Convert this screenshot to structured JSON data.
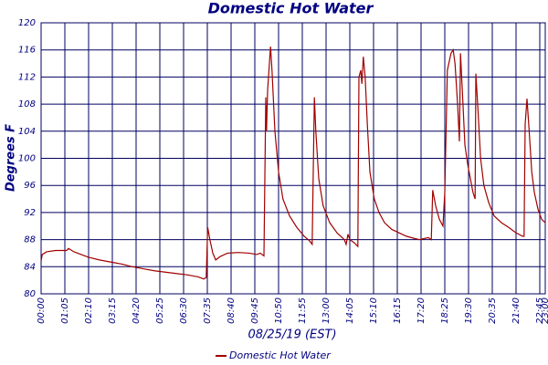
{
  "chart_data": {
    "type": "line",
    "title": "Domestic Hot Water",
    "ylabel": "Degrees F",
    "xlabel": "08/25/19 (EST)",
    "xlim": [
      0,
      1380
    ],
    "ylim": [
      80,
      120
    ],
    "yticks": [
      80,
      84,
      88,
      92,
      96,
      100,
      104,
      108,
      112,
      116,
      120
    ],
    "xticks": [
      {
        "value": 0,
        "label": "00:00"
      },
      {
        "value": 65,
        "label": "01:05"
      },
      {
        "value": 130,
        "label": "02:10"
      },
      {
        "value": 195,
        "label": "03:15"
      },
      {
        "value": 260,
        "label": "04:20"
      },
      {
        "value": 325,
        "label": "05:25"
      },
      {
        "value": 390,
        "label": "06:30"
      },
      {
        "value": 455,
        "label": "07:35"
      },
      {
        "value": 520,
        "label": "08:40"
      },
      {
        "value": 585,
        "label": "09:45"
      },
      {
        "value": 650,
        "label": "10:50"
      },
      {
        "value": 715,
        "label": "11:55"
      },
      {
        "value": 780,
        "label": "13:00"
      },
      {
        "value": 845,
        "label": "14:05"
      },
      {
        "value": 910,
        "label": "15:10"
      },
      {
        "value": 975,
        "label": "16:15"
      },
      {
        "value": 1040,
        "label": "17:20"
      },
      {
        "value": 1105,
        "label": "18:25"
      },
      {
        "value": 1170,
        "label": "19:30"
      },
      {
        "value": 1235,
        "label": "20:35"
      },
      {
        "value": 1300,
        "label": "21:40"
      },
      {
        "value": 1365,
        "label": "22:45"
      },
      {
        "value": 1380,
        "label": "23:00"
      }
    ],
    "grid": true,
    "legend": "bottom",
    "series": [
      {
        "name": "Domestic Hot Water",
        "color": "#a00000",
        "x": [
          0,
          3,
          15,
          40,
          70,
          75,
          90,
          110,
          130,
          160,
          190,
          220,
          250,
          280,
          310,
          340,
          370,
          400,
          430,
          445,
          452,
          456,
          462,
          470,
          478,
          490,
          510,
          540,
          570,
          590,
          600,
          610,
          615,
          617,
          620,
          628,
          632,
          640,
          650,
          662,
          680,
          700,
          720,
          735,
          742,
          748,
          752,
          760,
          772,
          790,
          810,
          830,
          835,
          840,
          845,
          858,
          867,
          870,
          875,
          878,
          882,
          887,
          893,
          900,
          912,
          925,
          940,
          960,
          980,
          1000,
          1020,
          1035,
          1060,
          1068,
          1072,
          1080,
          1090,
          1100,
          1105,
          1112,
          1122,
          1128,
          1133,
          1140,
          1145,
          1148,
          1153,
          1160,
          1168,
          1175,
          1182,
          1188,
          1190,
          1196,
          1203,
          1212,
          1225,
          1240,
          1260,
          1280,
          1300,
          1318,
          1322,
          1325,
          1330,
          1336,
          1343,
          1350,
          1360,
          1370,
          1380
        ],
        "values": [
          84.8,
          85.8,
          86.2,
          86.4,
          86.4,
          86.7,
          86.2,
          85.8,
          85.4,
          85.0,
          84.7,
          84.4,
          84.0,
          83.7,
          83.4,
          83.2,
          83.0,
          82.8,
          82.5,
          82.2,
          82.4,
          89.8,
          88.0,
          86.0,
          85.0,
          85.5,
          86.0,
          86.1,
          86.0,
          85.8,
          86.0,
          85.6,
          109,
          104,
          110,
          116.5,
          113,
          104,
          98,
          94,
          91.5,
          89.8,
          88.5,
          87.8,
          87.3,
          109,
          104,
          97,
          93,
          90.5,
          89,
          88,
          87.3,
          88.8,
          88,
          87.5,
          87,
          112,
          113,
          111,
          115,
          112,
          105,
          98,
          94,
          92,
          90.5,
          89.5,
          89,
          88.5,
          88.2,
          88,
          88.3,
          88,
          95.3,
          93,
          91,
          90,
          95,
          113,
          115.5,
          116,
          114,
          108,
          102.5,
          115.5,
          110,
          102,
          99,
          97,
          95,
          94,
          112.5,
          107,
          100,
          96,
          93.5,
          91.5,
          90.5,
          89.8,
          89,
          88.5,
          88.5,
          105,
          108.8,
          104,
          98,
          95,
          92.5,
          91,
          90.5
        ]
      }
    ]
  }
}
